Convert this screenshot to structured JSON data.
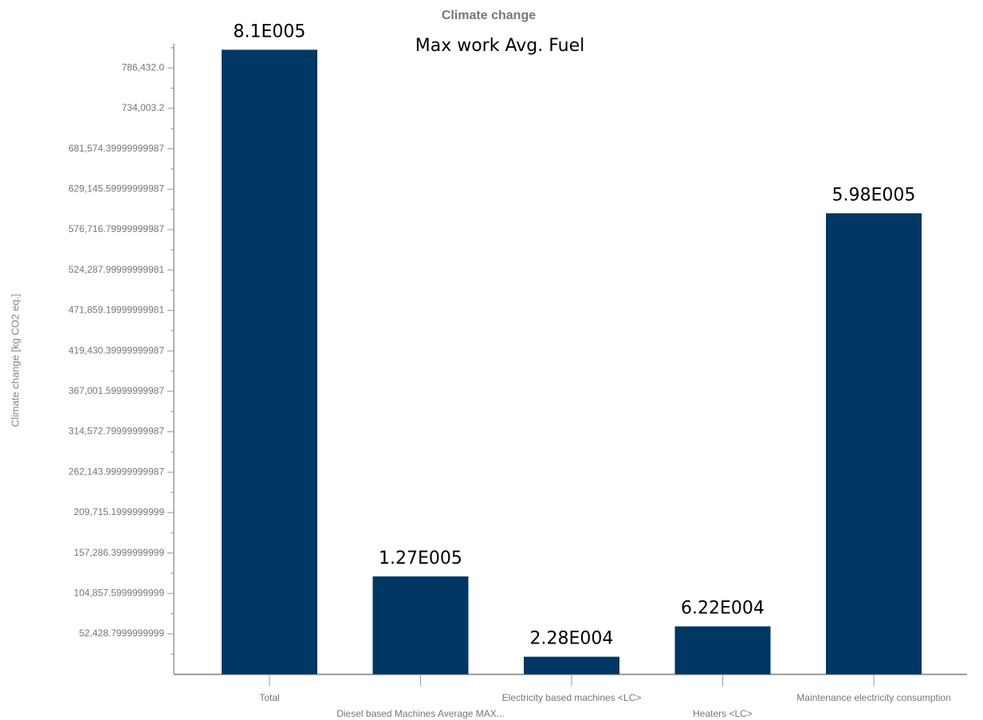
{
  "chart_data": {
    "type": "bar",
    "title": "Climate change",
    "subtitle": "Max work Avg. Fuel",
    "y_label": "Climate change [kg CO2 eq.]",
    "categories": [
      "Total",
      "Diesel based Machines Average MAX...",
      "Electricity based machines <LC>",
      "Heaters <LC>",
      "Maintenance electricity consumption"
    ],
    "values": [
      810000,
      127000,
      22800,
      62200,
      598000
    ],
    "value_labels": [
      "8.1E005",
      "1.27E005",
      "2.28E004",
      "6.22E004",
      "5.98E005"
    ],
    "color": "#003764",
    "ylim": [
      0,
      838860.8
    ],
    "yticks": [
      {
        "value": 52428.8,
        "label": "52,428.7999999999"
      },
      {
        "value": 104857.6,
        "label": "104,857.5999999999"
      },
      {
        "value": 157286.4,
        "label": "157,286.3999999999"
      },
      {
        "value": 209715.2,
        "label": "209,715.1999999999"
      },
      {
        "value": 262144,
        "label": "262,143.99999999987"
      },
      {
        "value": 314572.8,
        "label": "314,572.79999999987"
      },
      {
        "value": 367001.6,
        "label": "367,001.59999999987"
      },
      {
        "value": 419430.4,
        "label": "419,430.39999999987"
      },
      {
        "value": 471859.2,
        "label": "471,859.19999999981"
      },
      {
        "value": 524288,
        "label": "524,287.99999999981"
      },
      {
        "value": 576716.8,
        "label": "576,716.79999999987"
      },
      {
        "value": 629145.6,
        "label": "629,145.59999999987"
      },
      {
        "value": 681574.4,
        "label": "681,574.39999999987"
      },
      {
        "value": 734003.2,
        "label": "734,003.2"
      },
      {
        "value": 786432,
        "label": "786,432.0"
      }
    ],
    "grid": false
  }
}
